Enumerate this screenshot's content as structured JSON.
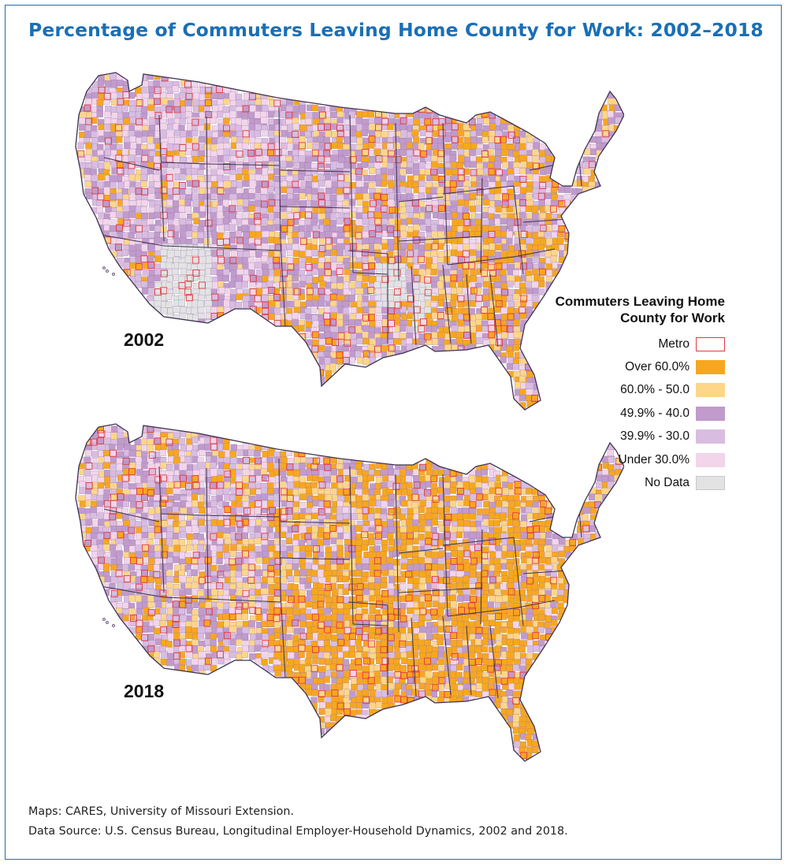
{
  "title": "Percentage of Commuters Leaving Home County for Work: 2002–2018",
  "maps": [
    {
      "year_label": "2002"
    },
    {
      "year_label": "2018"
    }
  ],
  "legend": {
    "title_line1": "Commuters Leaving Home",
    "title_line2": "County for Work",
    "items": [
      {
        "label": "Metro",
        "color": "#ffffff",
        "border": "#e3393e"
      },
      {
        "label": "Over 60.0%",
        "color": "#f7a71f",
        "border": "#f7a71f"
      },
      {
        "label": "60.0% - 50.0",
        "color": "#fdd68a",
        "border": "#fdd68a"
      },
      {
        "label": "49.9% - 40.0",
        "color": "#c09bcb",
        "border": "#c09bcb"
      },
      {
        "label": "39.9% - 30.0",
        "color": "#d9bde0",
        "border": "#d9bde0"
      },
      {
        "label": "Under 30.0%",
        "color": "#f2d5ea",
        "border": "#f2d5ea"
      },
      {
        "label": "No Data",
        "color": "#e3e3e3",
        "border": "#c8c8c8"
      }
    ]
  },
  "credits": {
    "line1": "Maps: CARES, University of Missouri Extension.",
    "line2": "Data Source: U.S. Census Bureau, Longitudinal Employer-Household Dynamics, 2002 and 2018."
  }
}
